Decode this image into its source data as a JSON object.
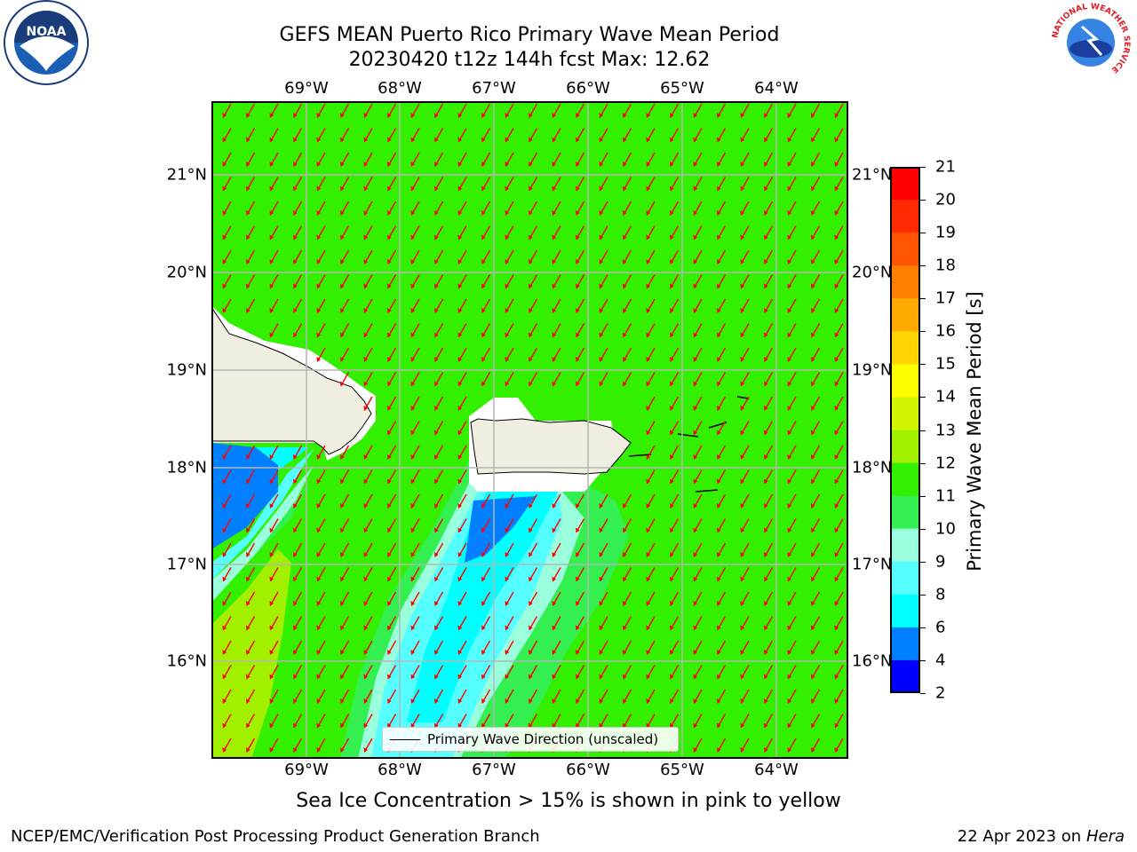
{
  "header": {
    "title_line1": "GEFS MEAN Puerto Rico Primary Wave Mean Period",
    "title_line2": "20230420 t12z 144h fcst   Max: 12.62"
  },
  "map": {
    "lon_labels": [
      "69°W",
      "68°W",
      "67°W",
      "66°W",
      "65°W",
      "64°W"
    ],
    "lat_labels": [
      "21°N",
      "20°N",
      "19°N",
      "18°N",
      "17°N",
      "16°N"
    ],
    "legend_label": "Primary Wave Direction (unscaled)",
    "arrow_color": "#ff0000",
    "background_color": "#33f000"
  },
  "colorbar": {
    "label": "Primary Wave Mean Period [s]",
    "ticks": [
      "21",
      "20",
      "19",
      "18",
      "17",
      "16",
      "15",
      "14",
      "13",
      "12",
      "11",
      "10",
      "9",
      "8",
      "6",
      "4",
      "2"
    ],
    "colors": [
      "#ff0000",
      "#ff2a00",
      "#ff5500",
      "#ff7f00",
      "#ffaa00",
      "#ffd400",
      "#ffff00",
      "#d4f500",
      "#a0f000",
      "#33f000",
      "#33f050",
      "#99ffdd",
      "#55ffff",
      "#00ffff",
      "#0080ff",
      "#0000ff"
    ]
  },
  "caption": "Sea Ice Concentration > 15% is shown in pink to yellow",
  "footer": {
    "left": "NCEP/EMC/Verification Post Processing Product Generation Branch",
    "right_prefix": "22 Apr 2023 on ",
    "right_host": "Hera"
  },
  "logos": {
    "noaa": "NOAA",
    "nws_ring": "NATIONAL WEATHER SERVICE"
  }
}
